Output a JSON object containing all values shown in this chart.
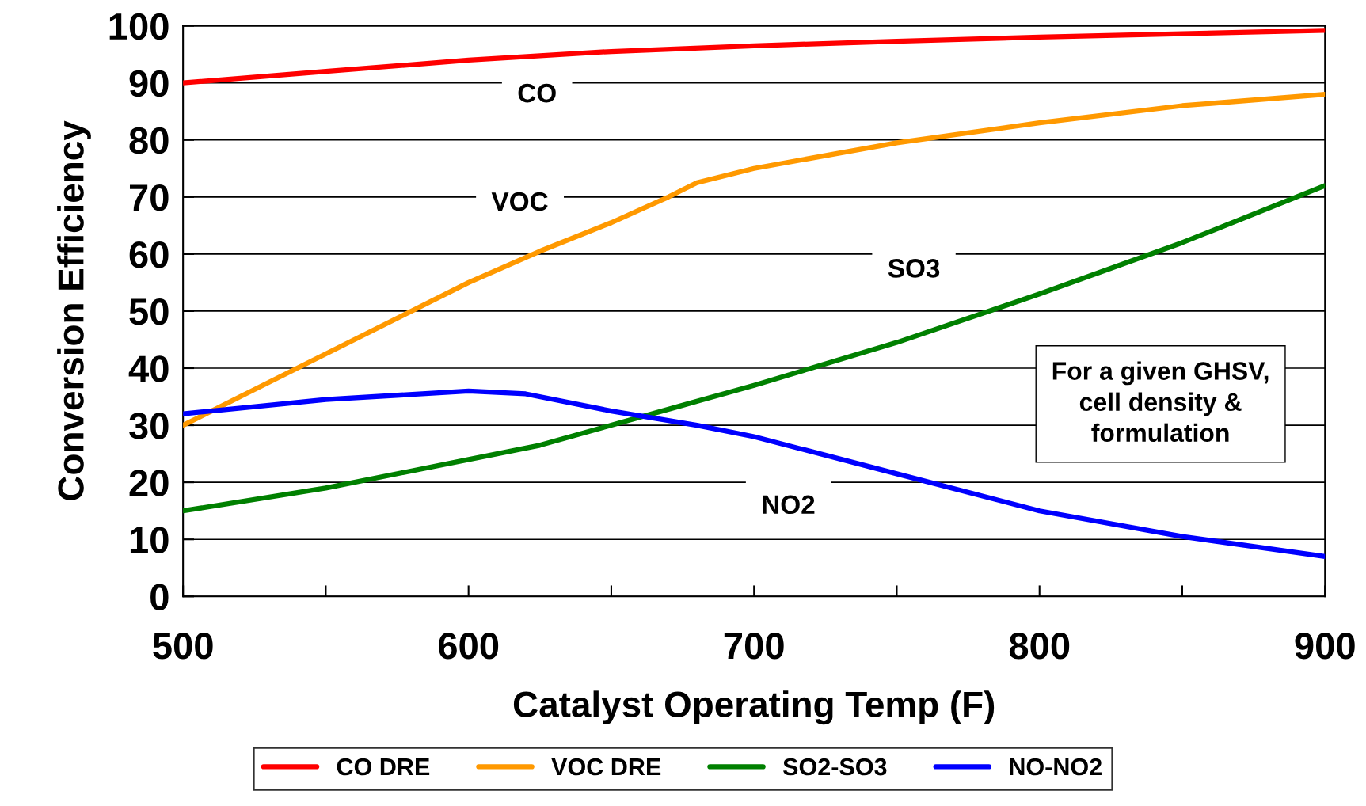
{
  "chart_data": {
    "type": "line",
    "xlabel": "Catalyst Operating Temp (F)",
    "ylabel": "Conversion Efficiency",
    "xlim": [
      500,
      900
    ],
    "xticks": [
      500,
      {
        "value": 550,
        "label": null
      },
      600,
      {
        "value": 650,
        "label": null
      },
      700,
      {
        "value": 750,
        "label": null
      },
      800,
      {
        "value": 850,
        "label": null
      },
      900
    ],
    "ylim": [
      0,
      100
    ],
    "yticks": [
      0,
      10,
      20,
      30,
      40,
      50,
      60,
      70,
      80,
      90,
      100
    ],
    "grid": "y",
    "legend": "bottom",
    "marker": "none",
    "line_style": "solid",
    "series": [
      {
        "name": "CO DRE",
        "color": "#ff0000",
        "x": [
          500,
          550,
          600,
          650,
          700,
          750,
          800,
          850,
          900
        ],
        "values": [
          90,
          92,
          94,
          95.5,
          96.5,
          97.3,
          98,
          98.6,
          99.2
        ]
      },
      {
        "name": "VOC DRE",
        "color": "#ff9900",
        "x": [
          500,
          520,
          550,
          600,
          625,
          650,
          670,
          680,
          700,
          750,
          800,
          850,
          900
        ],
        "values": [
          30,
          35,
          42.5,
          55,
          60.5,
          65.5,
          70,
          72.5,
          75,
          79.5,
          83,
          86,
          88
        ]
      },
      {
        "name": "SO2-SO3",
        "color": "#008000",
        "x": [
          500,
          550,
          600,
          625,
          650,
          675,
          700,
          750,
          800,
          850,
          900
        ],
        "values": [
          15,
          19,
          24,
          26.5,
          30,
          33.5,
          37,
          44.5,
          53,
          62,
          72
        ]
      },
      {
        "name": "NO-NO2",
        "color": "#0000ff",
        "x": [
          500,
          550,
          600,
          620,
          650,
          680,
          700,
          750,
          800,
          850,
          900
        ],
        "values": [
          32,
          34.5,
          36,
          35.5,
          32.5,
          30,
          28,
          21.5,
          15,
          10.5,
          7
        ]
      }
    ],
    "annotations": [
      "CO",
      "VOC",
      "SO3",
      "NO2",
      "For a given GHSV,\ncell density &\nformulation"
    ]
  }
}
